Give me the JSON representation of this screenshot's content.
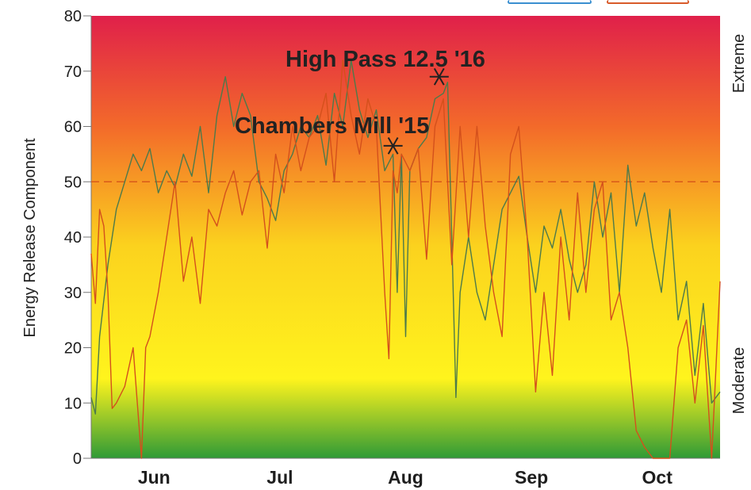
{
  "chart_data": {
    "type": "line",
    "ylabel": "Energy Release Component",
    "right_labels": [
      "Extreme",
      "Moderate"
    ],
    "ylim": [
      0,
      80
    ],
    "yticks": [
      0,
      10,
      20,
      30,
      40,
      50,
      60,
      70,
      80
    ],
    "x_categories": [
      "Jun",
      "Jul",
      "Aug",
      "Sep",
      "Oct"
    ],
    "xlim": [
      0,
      150
    ],
    "reference_line": {
      "y": 50,
      "style": "dashed",
      "color": "#d85a1a"
    },
    "background_gradient": [
      "#e0204a",
      "#f36a2a",
      "#fbd21e",
      "#fff41d",
      "#2f9a36"
    ],
    "annotations": [
      {
        "text": "High Pass 12.5  '16",
        "marker_x": 83,
        "marker_y": 69
      },
      {
        "text": "Chambers Mill  '15",
        "marker_x": 72,
        "marker_y": 56.5
      }
    ],
    "series": [
      {
        "color": "#4d7a4a",
        "x": [
          0,
          1,
          2,
          4,
          6,
          8,
          10,
          12,
          14,
          16,
          18,
          20,
          22,
          24,
          26,
          28,
          30,
          32,
          34,
          36,
          38,
          40,
          42,
          44,
          46,
          48,
          50,
          52,
          54,
          56,
          58,
          60,
          62,
          64,
          66,
          68,
          70,
          72,
          73,
          74,
          75,
          76,
          78,
          80,
          82,
          84,
          85,
          86,
          87,
          88,
          90,
          92,
          94,
          96,
          98,
          100,
          102,
          104,
          106,
          108,
          110,
          112,
          114,
          116,
          118,
          120,
          122,
          124,
          126,
          128,
          130,
          132,
          134,
          136,
          138,
          140,
          142,
          144,
          146,
          148,
          150
        ],
        "y": [
          11,
          8,
          22,
          35,
          45,
          50,
          55,
          52,
          56,
          48,
          52,
          49,
          55,
          51,
          60,
          48,
          62,
          69,
          60,
          66,
          62,
          50,
          47,
          43,
          52,
          55,
          60,
          58,
          62,
          53,
          66,
          60,
          72,
          63,
          58,
          63,
          52,
          55,
          30,
          55,
          22,
          52,
          56,
          58,
          65,
          66,
          68,
          40,
          11,
          30,
          40,
          30,
          25,
          35,
          45,
          48,
          51,
          40,
          30,
          42,
          38,
          45,
          36,
          30,
          35,
          50,
          40,
          48,
          30,
          53,
          42,
          48,
          38,
          30,
          45,
          25,
          32,
          15,
          28,
          10,
          12
        ]
      },
      {
        "color": "#d4501c",
        "x": [
          0,
          1,
          2,
          3,
          4,
          5,
          6,
          8,
          10,
          12,
          13,
          14,
          15,
          16,
          18,
          20,
          22,
          24,
          26,
          28,
          30,
          32,
          34,
          36,
          38,
          40,
          42,
          44,
          46,
          48,
          50,
          52,
          54,
          56,
          58,
          60,
          62,
          64,
          66,
          68,
          70,
          71,
          72,
          73,
          74,
          76,
          78,
          80,
          82,
          84,
          86,
          88,
          90,
          92,
          94,
          96,
          98,
          100,
          102,
          104,
          106,
          108,
          110,
          112,
          114,
          116,
          118,
          120,
          122,
          124,
          126,
          128,
          130,
          132,
          134,
          136,
          138,
          140,
          142,
          144,
          146,
          148,
          150
        ],
        "y": [
          37,
          28,
          45,
          42,
          30,
          9,
          10,
          13,
          20,
          0,
          20,
          22,
          26,
          30,
          40,
          50,
          32,
          40,
          28,
          45,
          42,
          48,
          52,
          44,
          50,
          52,
          38,
          55,
          48,
          60,
          52,
          58,
          60,
          66,
          50,
          72,
          62,
          55,
          65,
          60,
          30,
          18,
          52,
          48,
          55,
          52,
          56,
          36,
          60,
          65,
          35,
          60,
          40,
          60,
          42,
          30,
          22,
          55,
          60,
          40,
          12,
          30,
          15,
          40,
          25,
          48,
          30,
          45,
          50,
          25,
          30,
          20,
          5,
          2,
          0,
          0,
          0,
          20,
          25,
          10,
          24,
          0,
          32
        ]
      }
    ]
  }
}
